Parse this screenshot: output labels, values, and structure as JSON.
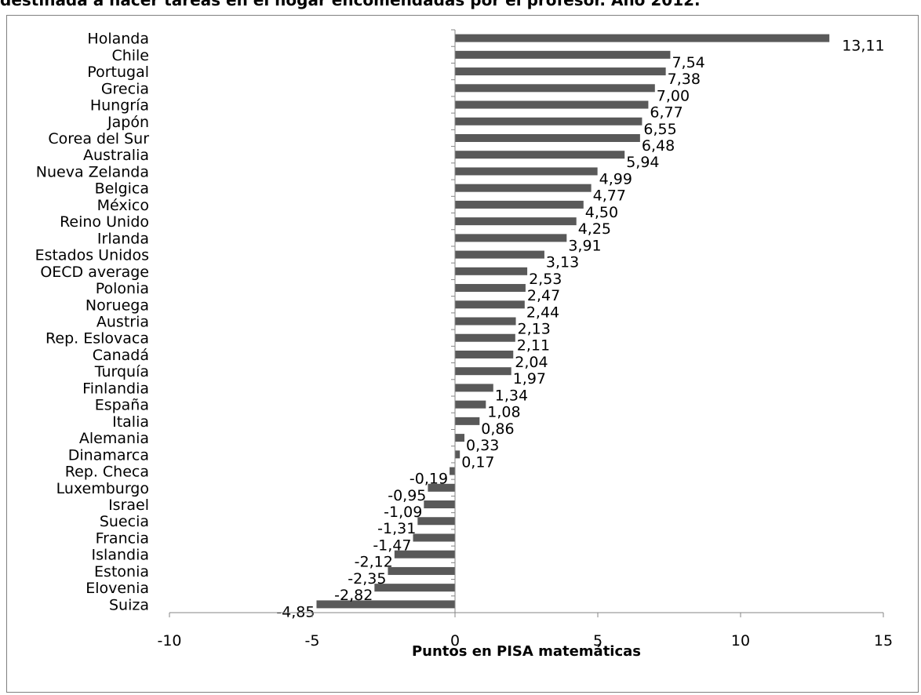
{
  "title": "destinada a hacer tareas en el hogar encomendadas por el profesor. Año 2012.",
  "chart_data": {
    "type": "bar",
    "orientation": "horizontal",
    "categories": [
      "Holanda",
      "Chile",
      "Portugal",
      "Grecia",
      "Hungría",
      "Japón",
      "Corea del Sur",
      "Australia",
      "Nueva Zelanda",
      "Belgica",
      "México",
      "Reino Unido",
      "Irlanda",
      "Estados Unidos",
      "OECD average",
      "Polonia",
      "Noruega",
      "Austria",
      "Rep. Eslovaca",
      "Canadá",
      "Turquía",
      "Finlandia",
      "España",
      "Italia",
      "Alemania",
      "Dinamarca",
      "Rep. Checa",
      "Luxemburgo",
      "Israel",
      "Suecia",
      "Francia",
      "Islandia",
      "Estonia",
      "Elovenia",
      "Suiza"
    ],
    "values": [
      13.11,
      7.54,
      7.38,
      7.0,
      6.77,
      6.55,
      6.48,
      5.94,
      4.99,
      4.77,
      4.5,
      4.25,
      3.91,
      3.13,
      2.53,
      2.47,
      2.44,
      2.13,
      2.11,
      2.04,
      1.97,
      1.34,
      1.08,
      0.86,
      0.33,
      0.17,
      -0.19,
      -0.95,
      -1.09,
      -1.31,
      -1.47,
      -2.12,
      -2.35,
      -2.82,
      -4.85
    ],
    "value_labels": [
      "13,11",
      "7,54",
      "7,38",
      "7,00",
      "6,77",
      "6,55",
      "6,48",
      "5,94",
      "4,99",
      "4,77",
      "4,50",
      "4,25",
      "3,91",
      "3,13",
      "2,53",
      "2,47",
      "2,44",
      "2,13",
      "2,11",
      "2,04",
      "1,97",
      "1,34",
      "1,08",
      "0,86",
      "0,33",
      "0,17",
      "-0,19",
      "-0,95",
      "-1,09",
      "-1,31",
      "-1,47",
      "-2,12",
      "-2,35",
      "-2,82",
      "-4,85"
    ],
    "xlim": [
      -10,
      15
    ],
    "xticks": [
      -10,
      -5,
      0,
      5,
      10,
      15
    ],
    "xtick_labels": [
      "-10",
      "-5",
      "0",
      "5",
      "10",
      "15"
    ],
    "xlabel": "Puntos en PISA matemáticas",
    "ylabel": "",
    "grid": false,
    "legend": "none",
    "bar_color": "#595959"
  }
}
